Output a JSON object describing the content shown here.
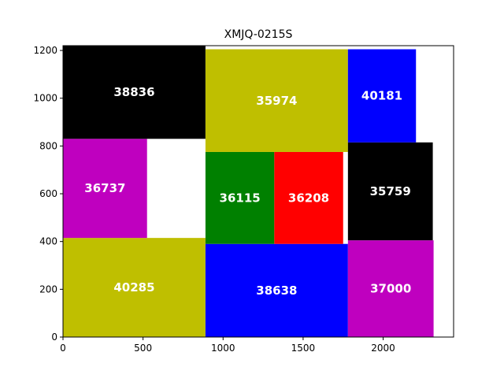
{
  "chart_data": {
    "type": "treemap",
    "title": "XMJQ-0215S",
    "xlabel": "",
    "ylabel": "",
    "xlim": [
      0,
      2440
    ],
    "ylim": [
      0,
      1220
    ],
    "xticks": [
      0,
      500,
      1000,
      1500,
      2000
    ],
    "yticks": [
      0,
      200,
      400,
      600,
      800,
      1000,
      1200
    ],
    "grid": false,
    "rects": [
      {
        "label": "40285",
        "x": 0,
        "y": 0,
        "width": 890,
        "height": 415,
        "color": "#bfbf00"
      },
      {
        "label": "36737",
        "x": 0,
        "y": 415,
        "width": 525,
        "height": 415,
        "color": "#bf00bf"
      },
      {
        "label": "38836",
        "x": 0,
        "y": 830,
        "width": 890,
        "height": 390,
        "color": "#000000"
      },
      {
        "label": "38638",
        "x": 890,
        "y": 0,
        "width": 890,
        "height": 390,
        "color": "#0000ff"
      },
      {
        "label": "36115",
        "x": 890,
        "y": 390,
        "width": 430,
        "height": 385,
        "color": "#008000"
      },
      {
        "label": "36208",
        "x": 1320,
        "y": 390,
        "width": 430,
        "height": 385,
        "color": "#ff0000"
      },
      {
        "label": "35974",
        "x": 890,
        "y": 775,
        "width": 890,
        "height": 430,
        "color": "#bfbf00"
      },
      {
        "label": "37000",
        "x": 1780,
        "y": 0,
        "width": 535,
        "height": 405,
        "color": "#bf00bf"
      },
      {
        "label": "35759",
        "x": 1780,
        "y": 405,
        "width": 530,
        "height": 410,
        "color": "#000000"
      },
      {
        "label": "40181",
        "x": 1780,
        "y": 815,
        "width": 425,
        "height": 390,
        "color": "#0000ff"
      }
    ]
  }
}
